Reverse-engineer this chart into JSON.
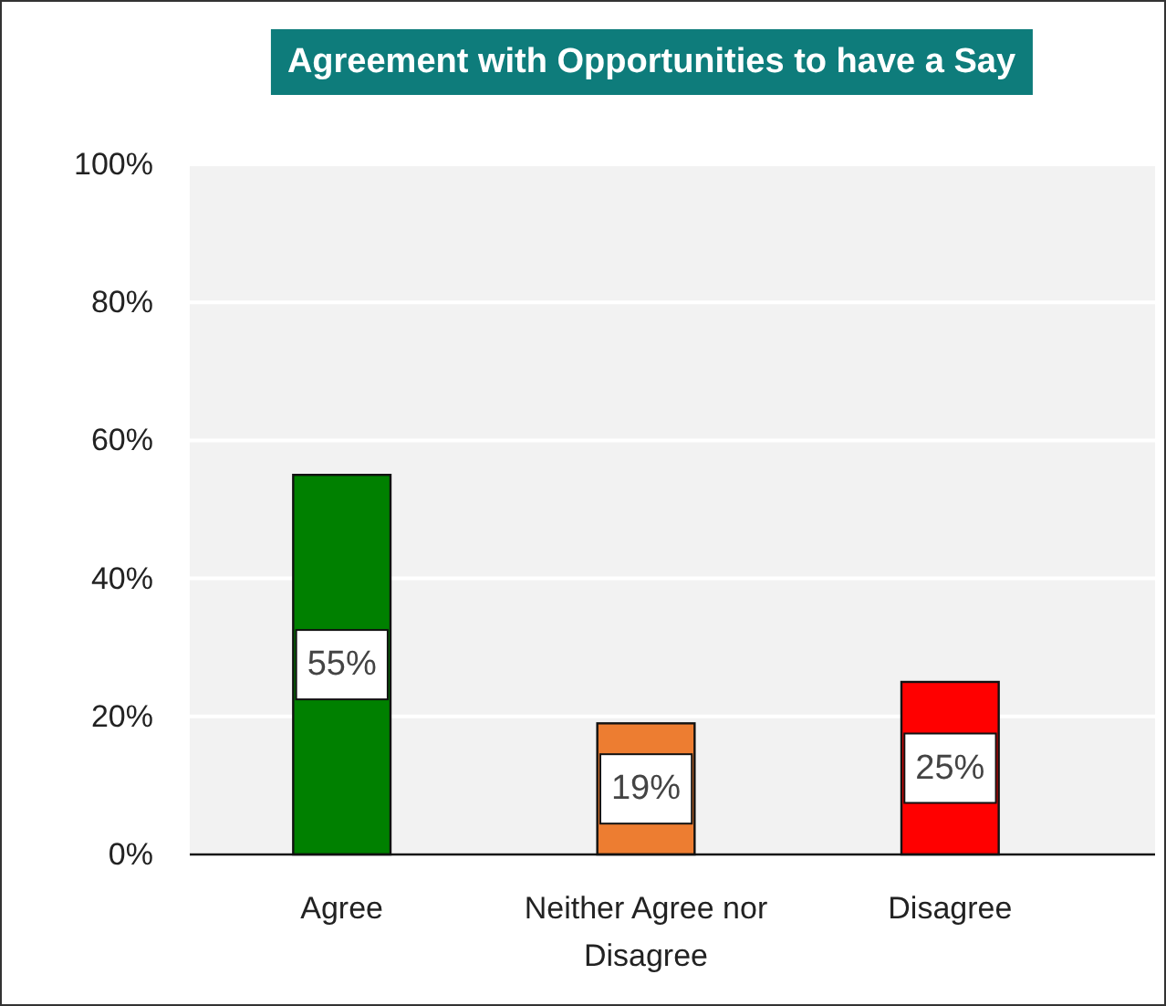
{
  "chart_data": {
    "type": "bar",
    "title": "Agreement with Opportunities to have a Say",
    "categories": [
      "Agree",
      "Neither Agree nor Disagree",
      "Disagree"
    ],
    "values": [
      55,
      19,
      25
    ],
    "colors": [
      "#008000",
      "#ed7d31",
      "#ff0000"
    ],
    "value_labels": [
      "55%",
      "19%",
      "25%"
    ],
    "ylim": [
      0,
      100
    ],
    "yticks": [
      {
        "value": 0,
        "label": "0%"
      },
      {
        "value": 20,
        "label": "20%"
      },
      {
        "value": 40,
        "label": "40%"
      },
      {
        "value": 60,
        "label": "60%"
      },
      {
        "value": 80,
        "label": "80%"
      },
      {
        "value": 100,
        "label": "100%"
      }
    ],
    "grid": "y"
  }
}
